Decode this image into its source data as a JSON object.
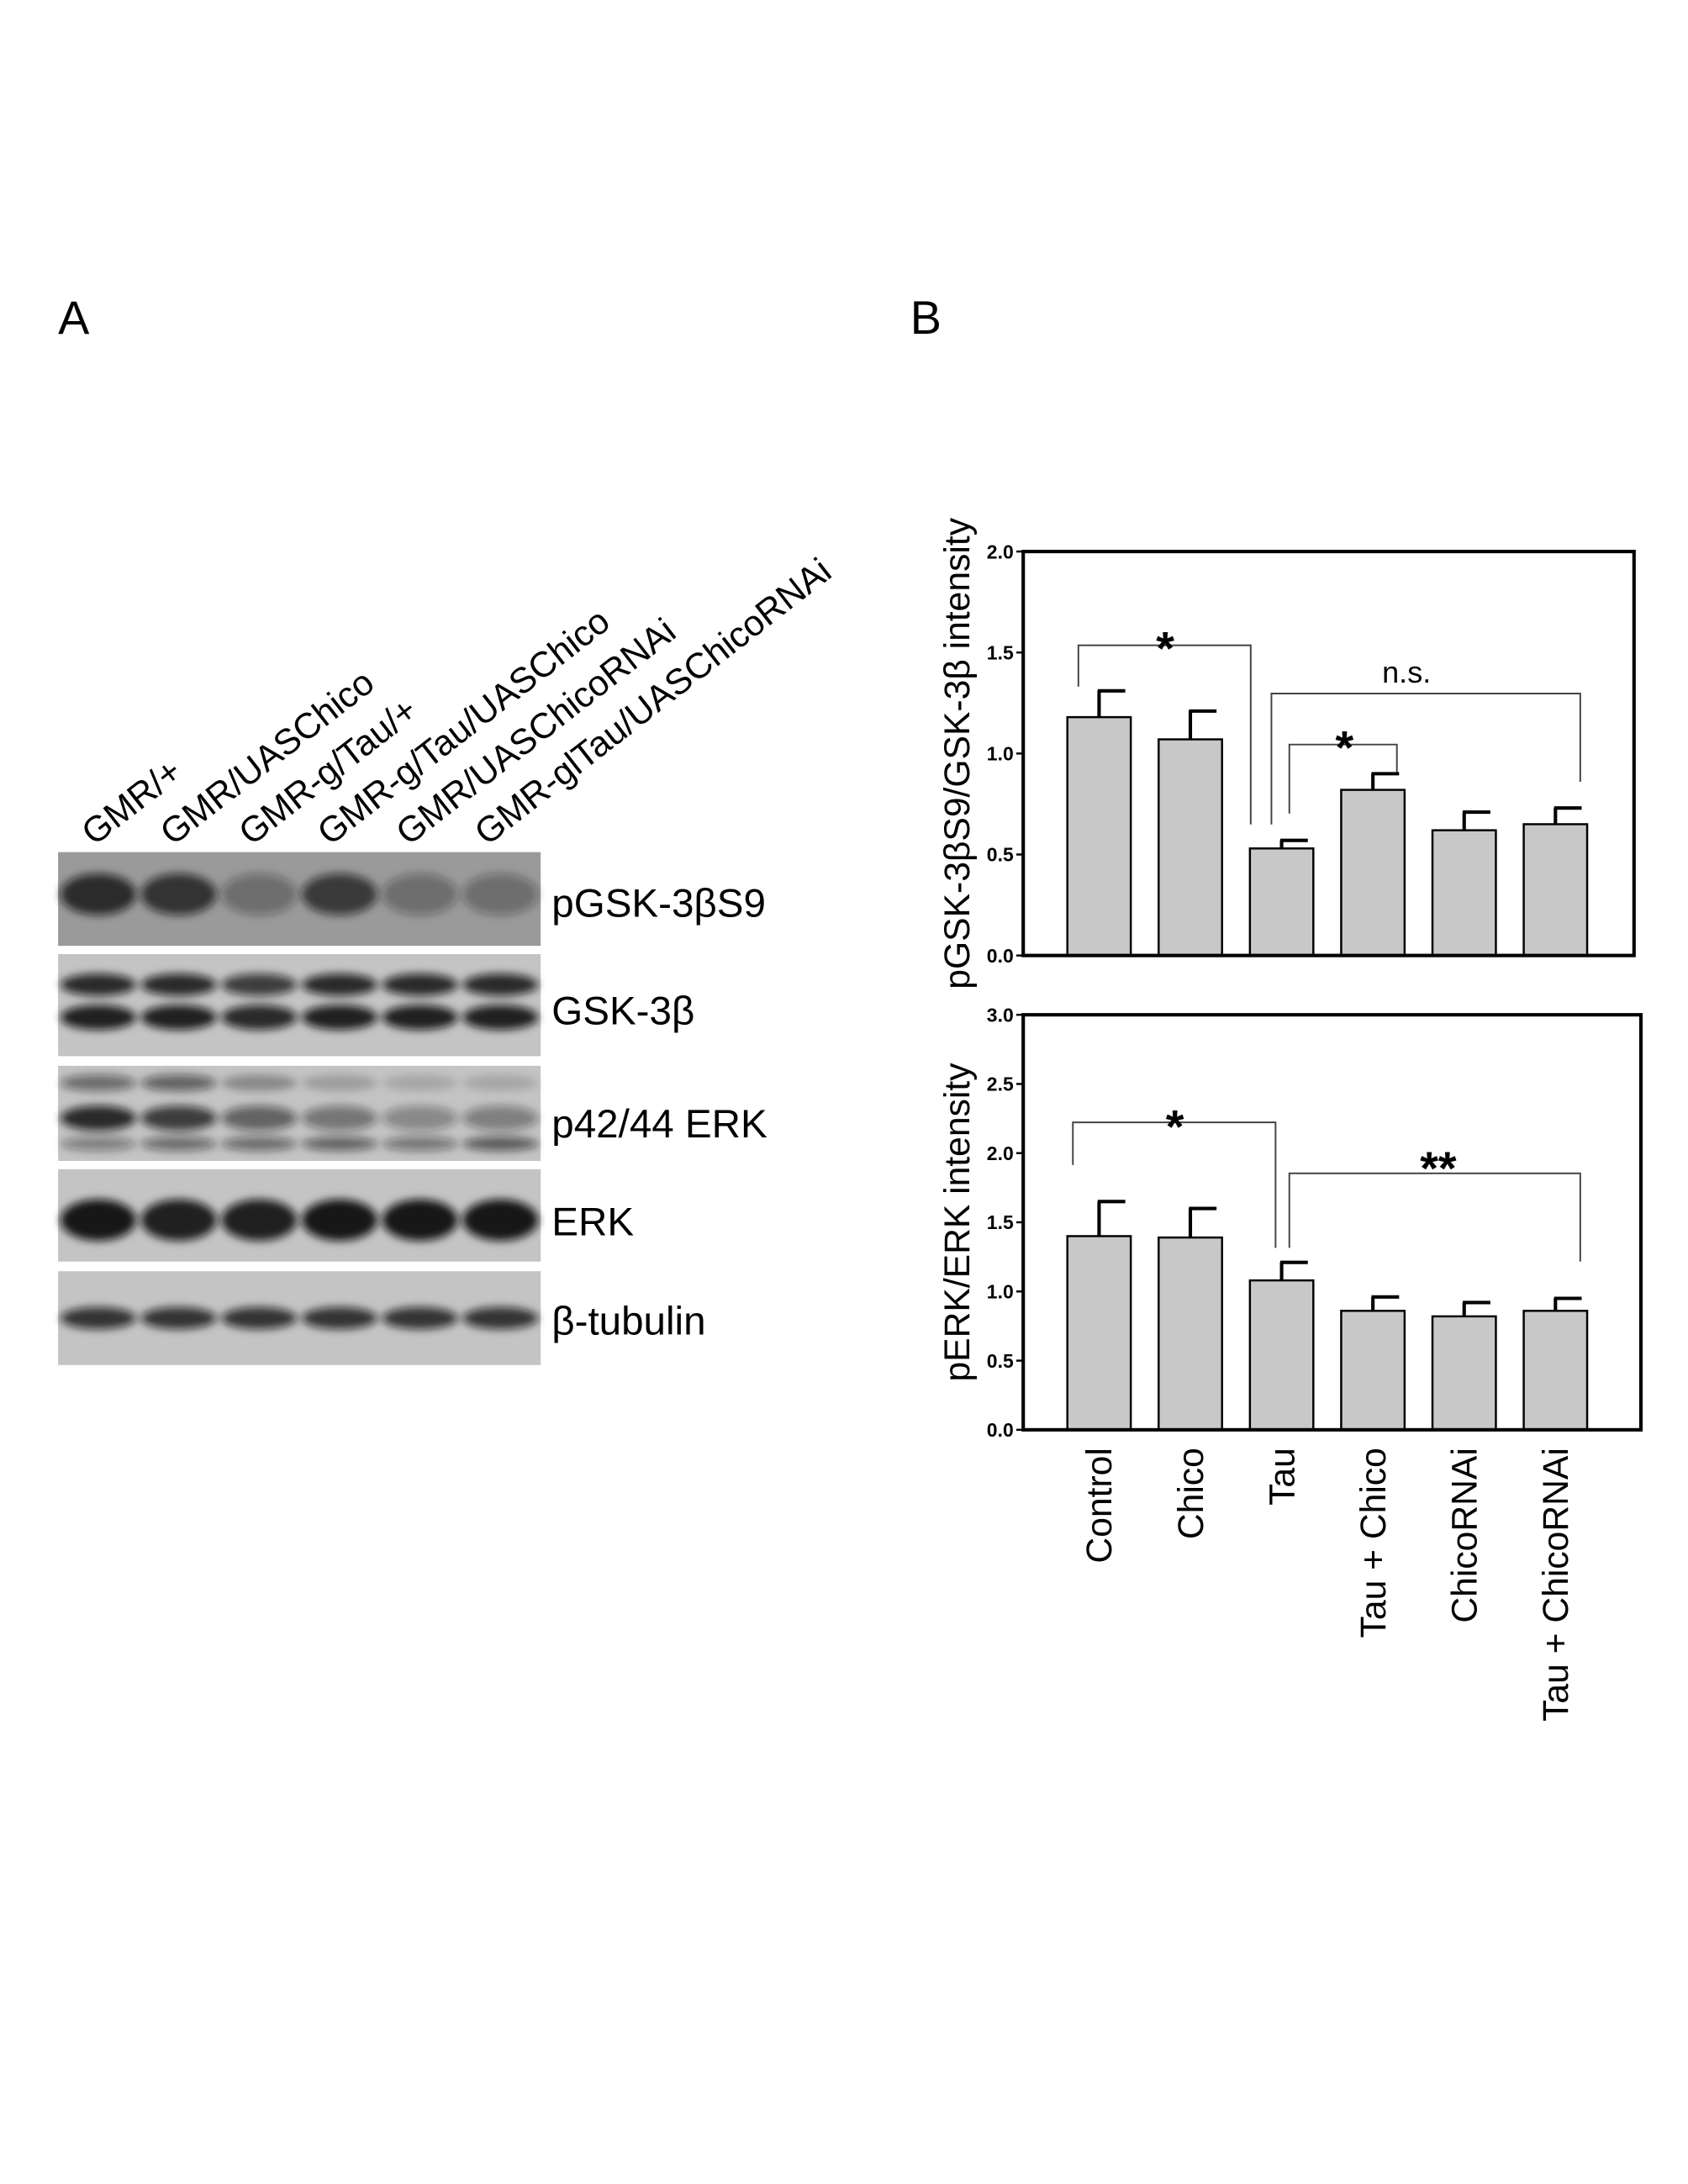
{
  "panel_labels": [
    "A",
    "B"
  ],
  "blot": {
    "lanes": [
      "GMR/+",
      "GMR/UASChico",
      "GMR-g/Tau/+",
      "GMR-g/Tau/UASChico",
      "GMR/UASChicoRNAi",
      "GMR-glTau/UASChicoRNAi"
    ],
    "bands": [
      "pGSK-3βS9",
      "GSK-3β",
      "p42/44 ERK",
      "ERK",
      "β-tubulin"
    ]
  },
  "chart_data": [
    {
      "type": "bar",
      "y_label": "pGSK-3βS9/GSK-3β intensity",
      "values": [
        1.18,
        1.07,
        0.53,
        0.82,
        0.62,
        0.65
      ],
      "errors": [
        0.13,
        0.14,
        0.04,
        0.08,
        0.09,
        0.08
      ],
      "color": "#c8c8c8",
      "ylim": [
        0,
        2
      ],
      "yticks": [
        {
          "value": 0,
          "label": "0.0"
        },
        0.5,
        {
          "value": 1,
          "label": "1.0"
        },
        1.5,
        {
          "value": 2,
          "label": "2.0"
        }
      ],
      "annotations": [
        "*",
        "n.s.",
        "*"
      ]
    },
    {
      "type": "bar",
      "y_label": "pERK/ERK intensity",
      "categories": [
        "Control",
        "Chico",
        "Tau",
        "Tau + Chico",
        "ChicoRNAi",
        "Tau + ChicoRNAi"
      ],
      "values": [
        1.4,
        1.39,
        1.08,
        0.86,
        0.82,
        0.86
      ],
      "errors": [
        0.25,
        0.21,
        0.13,
        0.1,
        0.1,
        0.09
      ],
      "color": "#c8c8c8",
      "ylim": [
        0,
        3
      ],
      "yticks": [
        {
          "value": 0,
          "label": "0.0"
        },
        0.5,
        {
          "value": 1,
          "label": "1.0"
        },
        1.5,
        {
          "value": 2,
          "label": "2.0"
        },
        2.5,
        {
          "value": 3,
          "label": "3.0"
        }
      ],
      "annotations": [
        "*",
        "**"
      ]
    }
  ]
}
